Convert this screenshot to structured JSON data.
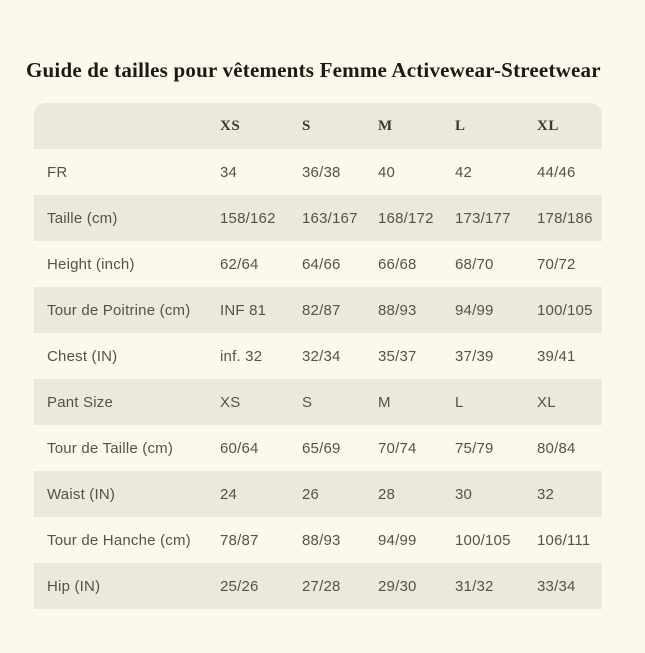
{
  "page": {
    "title": "Guide de tailles pour vêtements Femme Activewear-Streetwear",
    "background_color": "#FBF9EC",
    "stripe_color": "#ECE9DB",
    "title_color": "#1B1A15",
    "text_color": "#54524B"
  },
  "size_table": {
    "columns": [
      "XS",
      "S",
      "M",
      "L",
      "XL"
    ],
    "rows": [
      {
        "label": "FR",
        "values": [
          "34",
          "36/38",
          "40",
          "42",
          "44/46"
        ]
      },
      {
        "label": "Taille (cm)",
        "values": [
          "158/162",
          "163/167",
          "168/172",
          "173/177",
          "178/186"
        ]
      },
      {
        "label": "Height (inch)",
        "values": [
          "62/64",
          "64/66",
          "66/68",
          "68/70",
          "70/72"
        ]
      },
      {
        "label": "Tour de Poitrine (cm)",
        "values": [
          "INF 81",
          "82/87",
          "88/93",
          "94/99",
          "100/105"
        ]
      },
      {
        "label": "Chest (IN)",
        "values": [
          "inf. 32",
          "32/34",
          "35/37",
          "37/39",
          "39/41"
        ]
      },
      {
        "label": "Pant Size",
        "values": [
          "XS",
          "S",
          "M",
          "L",
          "XL"
        ]
      },
      {
        "label": "Tour de Taille (cm)",
        "values": [
          "60/64",
          "65/69",
          "70/74",
          "75/79",
          "80/84"
        ]
      },
      {
        "label": "Waist (IN)",
        "values": [
          "24",
          "26",
          "28",
          "30",
          "32"
        ]
      },
      {
        "label": "Tour de Hanche (cm)",
        "values": [
          "78/87",
          "88/93",
          "94/99",
          "100/105",
          "106/111"
        ]
      },
      {
        "label": "Hip (IN)",
        "values": [
          "25/26",
          "27/28",
          "29/30",
          "31/32",
          "33/34"
        ]
      }
    ]
  }
}
